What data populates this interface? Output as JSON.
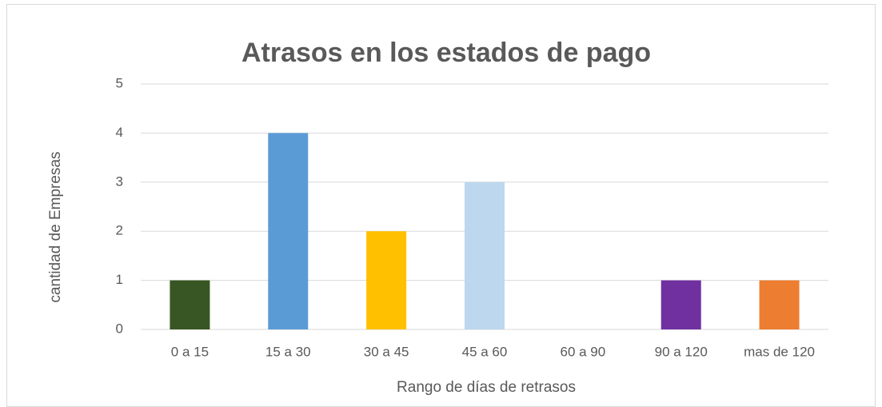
{
  "chart_data": {
    "type": "bar",
    "title": "Atrasos en los estados de pago",
    "x_label": "Rango de días de retrasos",
    "y_label": "cantidad de Empresas",
    "categories": [
      "0 a 15",
      "15 a 30",
      "30 a 45",
      "45 a 60",
      "60 a 90",
      "90 a 120",
      "mas de 120"
    ],
    "values": [
      1,
      4,
      2,
      3,
      0,
      1,
      1
    ],
    "colors": [
      "#375623",
      "#5b9bd5",
      "#ffc000",
      "#bdd7ee",
      "#a5a5a5",
      "#7030a0",
      "#ed7d31"
    ],
    "ylim": [
      0,
      5
    ],
    "yticks": [
      0,
      1,
      2,
      3,
      4,
      5
    ],
    "grid": true
  }
}
